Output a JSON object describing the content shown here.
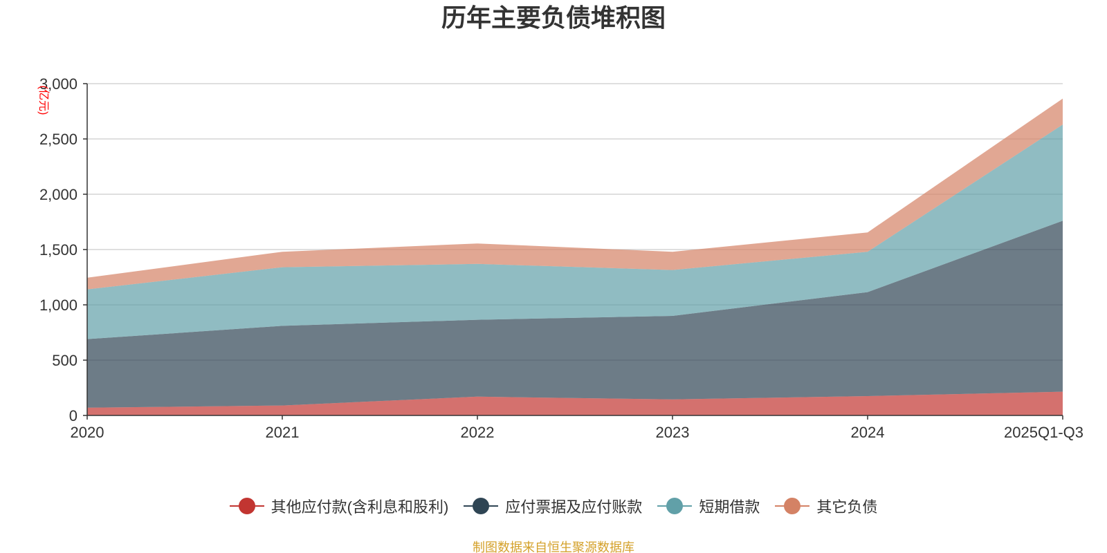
{
  "title": "历年主要负债堆积图",
  "source": "制图数据来自恒生聚源数据库",
  "chart_data": {
    "type": "area",
    "stacked": true,
    "title": "历年主要负债堆积图",
    "ylabel": "(亿元)",
    "xlabel": "",
    "categories": [
      "2020",
      "2021",
      "2022",
      "2023",
      "2024",
      "2025Q1-Q3"
    ],
    "ylim": [
      0,
      3000
    ],
    "yticks": [
      0,
      500,
      1000,
      1500,
      2000,
      2500,
      3000
    ],
    "ytick_labels": [
      "0",
      "500",
      "1,000",
      "1,500",
      "2,000",
      "2,500",
      "3,000"
    ],
    "grid": true,
    "legend_position": "bottom",
    "series": [
      {
        "name": "其他应付款(含利息和股利)",
        "color": "#c23531",
        "values": [
          70,
          90,
          170,
          145,
          175,
          215
        ]
      },
      {
        "name": "应付票据及应付账款",
        "color": "#2f4554",
        "values": [
          620,
          720,
          695,
          755,
          940,
          1545
        ]
      },
      {
        "name": "短期借款",
        "color": "#61a0a8",
        "values": [
          450,
          530,
          505,
          415,
          365,
          870
        ]
      },
      {
        "name": "其它负债",
        "color": "#d48265",
        "values": [
          105,
          140,
          185,
          165,
          175,
          235
        ]
      }
    ]
  }
}
